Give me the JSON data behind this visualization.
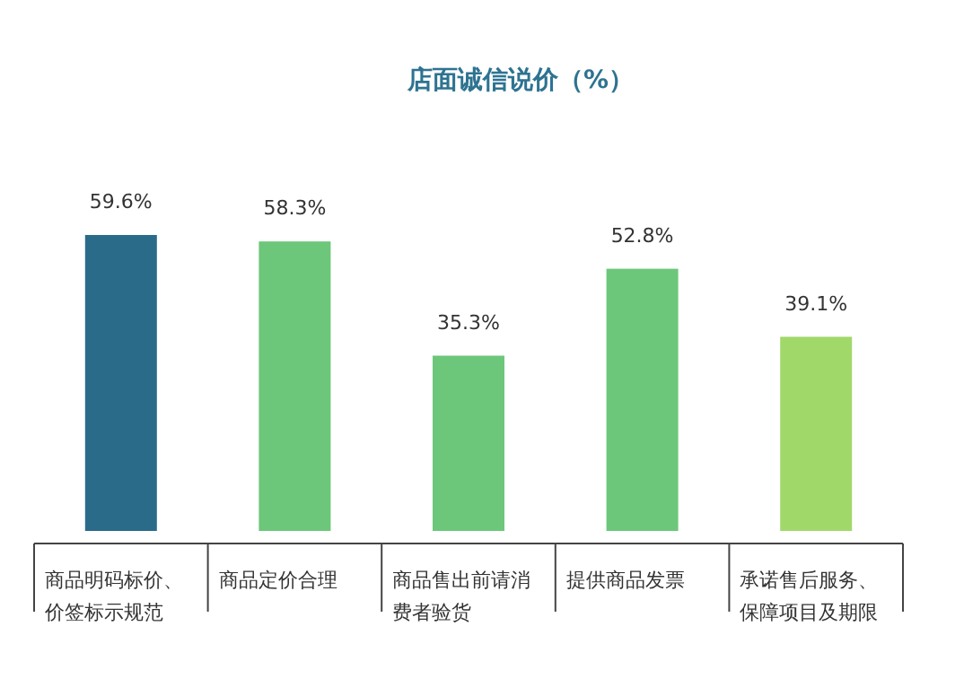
{
  "chart_data": {
    "type": "bar",
    "title": "店面诚信说价（%）",
    "categories": [
      "商品明码标价、价签标示规范",
      "商品定价合理",
      "商品售出前请消费者验货",
      "提供商品发票",
      "承诺售后服务、保障项目及期限"
    ],
    "values": [
      59.6,
      58.3,
      35.3,
      52.8,
      39.1
    ],
    "colors": [
      "#2b6b8a",
      "#6cc77a",
      "#6cc77a",
      "#6cc77a",
      "#a1d86a"
    ],
    "value_labels": [
      "59.6%",
      "58.3%",
      "35.3%",
      "52.8%",
      "39.1%"
    ]
  }
}
